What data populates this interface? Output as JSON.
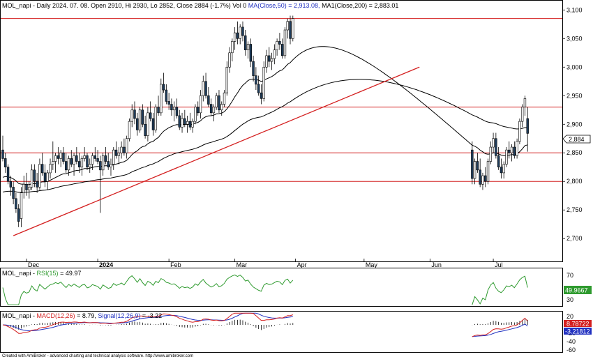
{
  "colors": {
    "up": "#ffffff",
    "down": "#1f3d5c",
    "ma_short": "#000000",
    "ma_long": "#000000",
    "hline": "#d42020",
    "trend": "#d42020",
    "rsi": "#2e9a2e",
    "macd": "#d42020",
    "signal": "#2030c0",
    "axis_label_bg": "#ffffff",
    "rsi_tag": "#2e9a2e",
    "macd_tag": "#d42020",
    "signal_tag": "#2030c0"
  },
  "header": {
    "symbol": "MOL_napi",
    "info": " - Daily 2024. 07. 08. Open 2910, Hi 2930, Lo 2852, Close 2884 (-1.7%) Vol 0",
    "ma50_text": "MA(Close,50) = 2,913.08,",
    "ma200_text": "MA1(Close,200) = 2,883.01"
  },
  "rsi_header": {
    "symbol": "MOL_napi",
    "label": "RSI(15)",
    "value": "= 49.97"
  },
  "macd_header": {
    "symbol": "MOL_napi",
    "macd_label": "MACD(12,26)",
    "macd_value": "= 8.79,",
    "signal_label": "Signal(12,26,9)",
    "signal_value": "= -3.22"
  },
  "footer": "Created with AmiBroker - advanced charting and technical analysis software. http://www.amibroker.com",
  "price_tag": "2,884",
  "rsi_tag": "49.9667",
  "macd_tag": "8.78722",
  "signal_tag": "-3.21812",
  "chart_data": [
    {
      "type": "candlestick",
      "ylim": [
        2660,
        3115
      ],
      "y_ticks": [
        "3,100",
        "3,050",
        "3,000",
        "2,950",
        "2,900",
        "2,850",
        "2,800",
        "2,750",
        "2,700"
      ],
      "y_tick_values": [
        3100,
        3050,
        3000,
        2950,
        2900,
        2850,
        2800,
        2750,
        2700
      ],
      "x_ticks": [
        "Dec",
        "2024",
        "Feb",
        "Mar",
        "Apr",
        "May",
        "Jun",
        "Jul"
      ],
      "x_tick_index": [
        9,
        36,
        63,
        88,
        111,
        137,
        162,
        186
      ],
      "support_resistance": [
        3085,
        2930,
        2850,
        2800
      ],
      "trendline": [
        [
          4,
          2705
        ],
        [
          158,
          3000
        ]
      ],
      "candles": [
        [
          2855,
          2880,
          2835,
          2840
        ],
        [
          2840,
          2850,
          2815,
          2825
        ],
        [
          2825,
          2830,
          2795,
          2800
        ],
        [
          2800,
          2810,
          2775,
          2790
        ],
        [
          2790,
          2800,
          2760,
          2770
        ],
        [
          2770,
          2780,
          2745,
          2752
        ],
        [
          2752,
          2760,
          2720,
          2730
        ],
        [
          2735,
          2790,
          2720,
          2780
        ],
        [
          2780,
          2810,
          2770,
          2795
        ],
        [
          2795,
          2815,
          2775,
          2785
        ],
        [
          2785,
          2800,
          2770,
          2790
        ],
        [
          2790,
          2830,
          2785,
          2820
        ],
        [
          2820,
          2830,
          2790,
          2800
        ],
        [
          2800,
          2815,
          2780,
          2790
        ],
        [
          2790,
          2840,
          2785,
          2830
        ],
        [
          2830,
          2850,
          2810,
          2815
        ],
        [
          2815,
          2830,
          2790,
          2800
        ],
        [
          2800,
          2820,
          2785,
          2815
        ],
        [
          2815,
          2840,
          2805,
          2830
        ],
        [
          2830,
          2870,
          2820,
          2835
        ],
        [
          2835,
          2850,
          2815,
          2845
        ],
        [
          2845,
          2860,
          2830,
          2840
        ],
        [
          2840,
          2855,
          2825,
          2850
        ],
        [
          2850,
          2860,
          2830,
          2835
        ],
        [
          2835,
          2850,
          2815,
          2820
        ],
        [
          2820,
          2845,
          2810,
          2840
        ],
        [
          2840,
          2855,
          2825,
          2830
        ],
        [
          2830,
          2850,
          2810,
          2845
        ],
        [
          2845,
          2860,
          2830,
          2835
        ],
        [
          2835,
          2850,
          2815,
          2825
        ],
        [
          2825,
          2845,
          2810,
          2840
        ],
        [
          2840,
          2860,
          2835,
          2845
        ],
        [
          2845,
          2850,
          2820,
          2825
        ],
        [
          2825,
          2840,
          2815,
          2830
        ],
        [
          2830,
          2850,
          2820,
          2845
        ],
        [
          2845,
          2860,
          2835,
          2840
        ],
        [
          2840,
          2855,
          2830,
          2835
        ],
        [
          2835,
          2845,
          2745,
          2820
        ],
        [
          2820,
          2850,
          2810,
          2845
        ],
        [
          2845,
          2860,
          2830,
          2835
        ],
        [
          2835,
          2850,
          2820,
          2825
        ],
        [
          2825,
          2840,
          2810,
          2830
        ],
        [
          2830,
          2860,
          2820,
          2855
        ],
        [
          2855,
          2870,
          2840,
          2845
        ],
        [
          2845,
          2860,
          2830,
          2850
        ],
        [
          2850,
          2870,
          2840,
          2860
        ],
        [
          2860,
          2875,
          2845,
          2850
        ],
        [
          2850,
          2880,
          2840,
          2875
        ],
        [
          2875,
          2910,
          2870,
          2905
        ],
        [
          2905,
          2935,
          2895,
          2925
        ],
        [
          2925,
          2940,
          2900,
          2910
        ],
        [
          2910,
          2920,
          2880,
          2890
        ],
        [
          2890,
          2930,
          2885,
          2925
        ],
        [
          2925,
          2935,
          2895,
          2900
        ],
        [
          2900,
          2915,
          2875,
          2880
        ],
        [
          2880,
          2930,
          2870,
          2920
        ],
        [
          2920,
          2940,
          2905,
          2910
        ],
        [
          2910,
          2920,
          2880,
          2890
        ],
        [
          2890,
          2935,
          2885,
          2930
        ],
        [
          2930,
          2950,
          2915,
          2920
        ],
        [
          2920,
          2980,
          2915,
          2970
        ],
        [
          2970,
          2990,
          2955,
          2960
        ],
        [
          2960,
          2970,
          2935,
          2940
        ],
        [
          2940,
          2955,
          2925,
          2935
        ],
        [
          2935,
          2945,
          2915,
          2925
        ],
        [
          2925,
          2940,
          2905,
          2930
        ],
        [
          2930,
          2945,
          2910,
          2915
        ],
        [
          2915,
          2925,
          2890,
          2895
        ],
        [
          2895,
          2920,
          2885,
          2910
        ],
        [
          2910,
          2925,
          2895,
          2900
        ],
        [
          2900,
          2915,
          2885,
          2905
        ],
        [
          2905,
          2920,
          2890,
          2895
        ],
        [
          2895,
          2910,
          2885,
          2905
        ],
        [
          2905,
          2935,
          2900,
          2930
        ],
        [
          2930,
          2940,
          2915,
          2920
        ],
        [
          2920,
          2960,
          2910,
          2950
        ],
        [
          2950,
          2985,
          2940,
          2975
        ],
        [
          2975,
          2990,
          2945,
          2950
        ],
        [
          2950,
          2965,
          2930,
          2935
        ],
        [
          2935,
          2945,
          2915,
          2920
        ],
        [
          2920,
          2935,
          2905,
          2930
        ],
        [
          2930,
          2955,
          2925,
          2950
        ],
        [
          2950,
          2960,
          2920,
          2925
        ],
        [
          2925,
          2940,
          2915,
          2935
        ],
        [
          2935,
          2960,
          2930,
          2955
        ],
        [
          2955,
          3010,
          2950,
          3000
        ],
        [
          3000,
          3035,
          2990,
          3025
        ],
        [
          3025,
          3050,
          3010,
          3045
        ],
        [
          3045,
          3070,
          3030,
          3060
        ],
        [
          3060,
          3080,
          3040,
          3050
        ],
        [
          3050,
          3075,
          3040,
          3070
        ],
        [
          3070,
          3080,
          3045,
          3055
        ],
        [
          3055,
          3065,
          3020,
          3030
        ],
        [
          3030,
          3045,
          3015,
          3040
        ],
        [
          3040,
          3050,
          3000,
          3010
        ],
        [
          3010,
          3020,
          2975,
          2985
        ],
        [
          2985,
          3000,
          2960,
          2970
        ],
        [
          2970,
          2985,
          2950,
          2955
        ],
        [
          2955,
          2970,
          2935,
          2945
        ],
        [
          2945,
          3010,
          2940,
          3000
        ],
        [
          3000,
          3030,
          2990,
          3020
        ],
        [
          3020,
          3035,
          3000,
          3010
        ],
        [
          3010,
          3025,
          2995,
          3015
        ],
        [
          3015,
          3040,
          3005,
          3030
        ],
        [
          3030,
          3050,
          3020,
          3045
        ],
        [
          3045,
          3060,
          3030,
          3040
        ],
        [
          3040,
          3050,
          3015,
          3020
        ],
        [
          3020,
          3070,
          3015,
          3065
        ],
        [
          3065,
          3085,
          3050,
          3080
        ],
        [
          3080,
          3090,
          3040,
          3050
        ],
        [
          3050,
          3090,
          3045,
          3085
        ]
      ],
      "candles_late": [
        [
          2855,
          2870,
          2795,
          2805
        ],
        [
          2805,
          2840,
          2795,
          2835
        ],
        [
          2835,
          2850,
          2815,
          2820
        ],
        [
          2820,
          2840,
          2790,
          2795
        ],
        [
          2795,
          2815,
          2785,
          2810
        ],
        [
          2810,
          2825,
          2790,
          2800
        ],
        [
          2800,
          2840,
          2795,
          2835
        ],
        [
          2835,
          2870,
          2830,
          2860
        ],
        [
          2860,
          2885,
          2850,
          2875
        ],
        [
          2875,
          2885,
          2840,
          2845
        ],
        [
          2845,
          2860,
          2820,
          2825
        ],
        [
          2825,
          2840,
          2805,
          2815
        ],
        [
          2815,
          2835,
          2805,
          2830
        ],
        [
          2830,
          2860,
          2825,
          2855
        ],
        [
          2855,
          2870,
          2840,
          2850
        ],
        [
          2850,
          2865,
          2835,
          2860
        ],
        [
          2860,
          2870,
          2840,
          2845
        ],
        [
          2845,
          2875,
          2840,
          2870
        ],
        [
          2870,
          2910,
          2865,
          2905
        ],
        [
          2905,
          2935,
          2895,
          2930
        ],
        [
          2930,
          2950,
          2915,
          2945
        ],
        [
          2910,
          2930,
          2852,
          2884
        ]
      ],
      "ma50_start": 2805,
      "ma200_start": 2780
    },
    {
      "type": "line",
      "name": "RSI(15)",
      "ylim": [
        20,
        80
      ],
      "y_ticks": [
        "70",
        "30"
      ],
      "y_tick_values": [
        70,
        30
      ],
      "last": 49.97
    },
    {
      "type": "macd",
      "macd_name": "MACD(12,26)",
      "signal_name": "Signal(12,26,9)",
      "ylim": [
        -65,
        30
      ],
      "y_ticks": [
        "20",
        "-20",
        "-40",
        "-60"
      ],
      "y_tick_values": [
        20,
        -20,
        -40,
        -60
      ],
      "macd_last": 8.79,
      "signal_last": -3.22
    }
  ]
}
